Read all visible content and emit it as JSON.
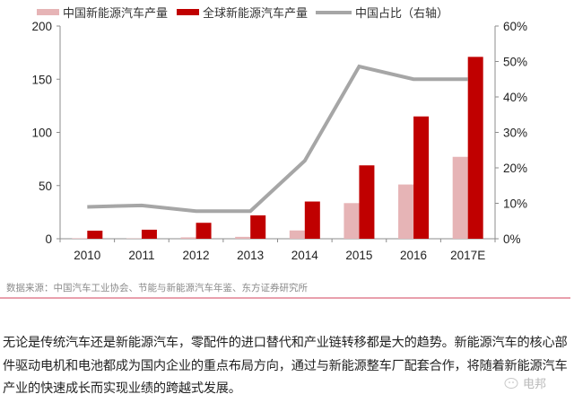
{
  "legend": {
    "china": {
      "label": "中国新能源汽车产量",
      "color": "#e6b4b6"
    },
    "global": {
      "label": "全球新能源汽车产量",
      "color": "#c00000"
    },
    "share": {
      "label": "中国占比（右轴）",
      "color": "#a6a6a6"
    }
  },
  "chart_data": {
    "type": "bar",
    "title": "",
    "categories": [
      "2010",
      "2011",
      "2012",
      "2013",
      "2014",
      "2015",
      "2016",
      "2017E"
    ],
    "series": [
      {
        "name": "中国新能源汽车产量",
        "type": "bar",
        "axis": "left",
        "color": "#e6b4b6",
        "values": [
          0.5,
          0.3,
          1.3,
          1.8,
          7.8,
          33.5,
          51,
          77
        ]
      },
      {
        "name": "全球新能源汽车产量",
        "type": "bar",
        "axis": "left",
        "color": "#c00000",
        "values": [
          7.6,
          8.5,
          15,
          22,
          35,
          69,
          115,
          171
        ]
      },
      {
        "name": "中国占比（右轴）",
        "type": "line",
        "axis": "right",
        "color": "#a6a6a6",
        "values": [
          0.09,
          0.094,
          0.078,
          0.078,
          0.22,
          0.486,
          0.45,
          0.45
        ]
      }
    ],
    "left_axis": {
      "ylim": [
        0,
        200
      ],
      "ticks": [
        "0",
        "50",
        "100",
        "150",
        "200"
      ]
    },
    "right_axis": {
      "ylim": [
        0,
        0.6
      ],
      "ticks": [
        "0%",
        "10%",
        "20%",
        "30%",
        "40%",
        "50%",
        "60%"
      ]
    },
    "xlabel": "",
    "ylabel": "",
    "grid": false,
    "legend_position": "top"
  },
  "source": "数据来源：中国汽车工业协会、节能与新能源汽车年鉴、东方证券研究所",
  "paragraph": "无论是传统汽车还是新能源汽车，零配件的进口替代和产业链转移都是大的趋势。新能源汽车的核心部件驱动电机和电池都成为国内企业的重点布局方向，通过与新能源整车厂配套合作，将随着新能源汽车产业的快速成长而实现业绩的跨越式发展。",
  "watermark": "电邦"
}
